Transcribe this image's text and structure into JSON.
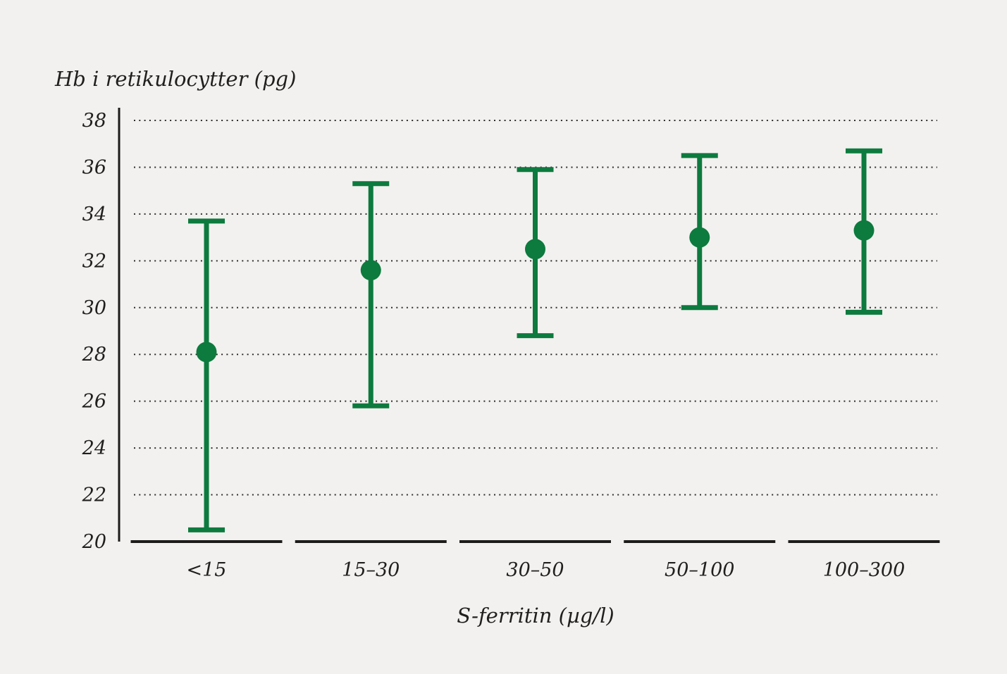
{
  "figure": {
    "y_axis_title": "Hb i retikulocytter (pg)",
    "x_axis_title": "S-ferritin (µg/l)"
  },
  "chart_data": {
    "type": "scatter",
    "subtype": "mean-with-error-bars",
    "title": "",
    "ylabel": "Hb i retikulocytter (pg)",
    "xlabel": "S-ferritin (µg/l)",
    "categories": [
      "<15",
      "15–30",
      "30–50",
      "50–100",
      "100–300"
    ],
    "series": [
      {
        "name": "Hb i retikulocytter",
        "means": [
          28.1,
          31.6,
          32.5,
          33.0,
          33.3
        ],
        "upper": [
          33.7,
          35.3,
          35.9,
          36.5,
          36.7
        ],
        "lower": [
          20.5,
          25.8,
          28.8,
          30.0,
          29.8
        ]
      }
    ],
    "ylim": [
      20,
      38
    ],
    "yticks": [
      38,
      36,
      34,
      32,
      30,
      28,
      26,
      24,
      22,
      20
    ],
    "grid": "dotted-horizontal",
    "legend": "none",
    "colors": {
      "marker": "#0d7a3e",
      "axis": "#1d1c1a",
      "grid_dots": "#2e2d2b",
      "text": "#211f1d",
      "background": "#f2f1ef"
    }
  }
}
